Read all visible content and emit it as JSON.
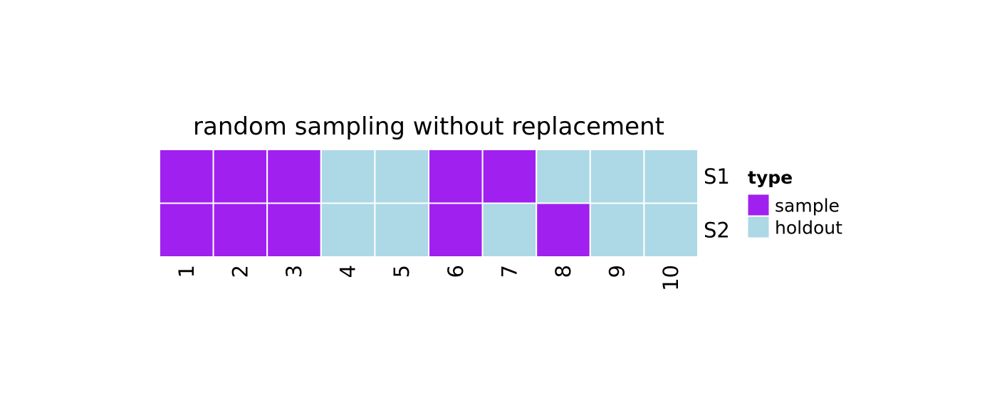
{
  "chart_data": {
    "type": "heatmap",
    "title": "random sampling without replacement",
    "x": [
      "1",
      "2",
      "3",
      "4",
      "5",
      "6",
      "7",
      "8",
      "9",
      "10"
    ],
    "y": [
      "S1",
      "S2"
    ],
    "values": [
      [
        "sample",
        "sample",
        "sample",
        "holdout",
        "holdout",
        "sample",
        "sample",
        "holdout",
        "holdout",
        "holdout"
      ],
      [
        "sample",
        "sample",
        "sample",
        "holdout",
        "holdout",
        "sample",
        "holdout",
        "sample",
        "holdout",
        "holdout"
      ]
    ],
    "legend": {
      "title": "type",
      "position": "right",
      "entries": [
        {
          "label": "sample",
          "color": "#A020F0"
        },
        {
          "label": "holdout",
          "color": "#ADD8E6"
        }
      ]
    },
    "grid": false,
    "cell_border_color": "#FFFFFF"
  }
}
